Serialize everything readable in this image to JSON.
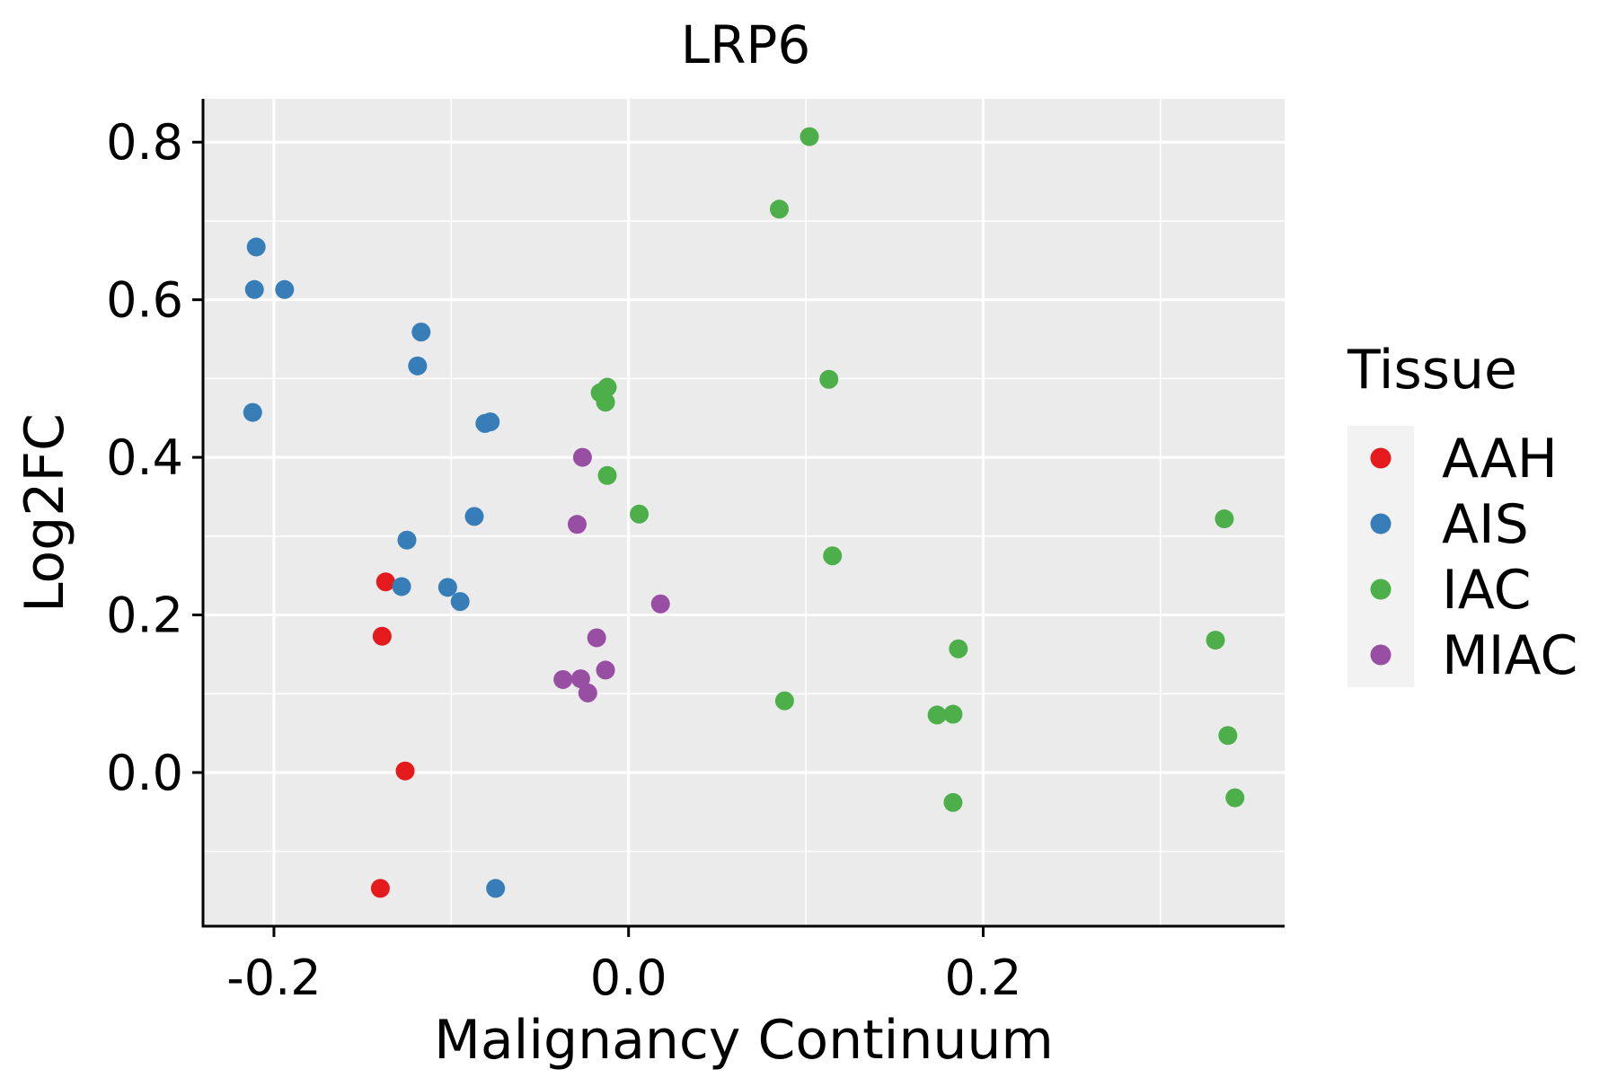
{
  "chart_data": {
    "type": "scatter",
    "title": "LRP6",
    "xlabel": "Malignancy Continuum",
    "ylabel": "Log2FC",
    "xlim": [
      -0.24,
      0.37
    ],
    "ylim": [
      -0.195,
      0.855
    ],
    "x_ticks": [
      -0.2,
      0.0,
      0.2
    ],
    "x_tick_labels": [
      "-0.2",
      "0.0",
      "0.2"
    ],
    "y_ticks": [
      0.0,
      0.2,
      0.4,
      0.6,
      0.8
    ],
    "y_tick_labels": [
      "0.0",
      "0.2",
      "0.4",
      "0.6",
      "0.8"
    ],
    "grid": true,
    "legend": {
      "title": "Tissue",
      "placement": "right"
    },
    "series": [
      {
        "name": "AAH",
        "color": "#E41A1C",
        "points": [
          {
            "x": -0.137,
            "y": 0.242
          },
          {
            "x": -0.139,
            "y": 0.173
          },
          {
            "x": -0.126,
            "y": 0.002
          },
          {
            "x": -0.14,
            "y": -0.147
          }
        ]
      },
      {
        "name": "AIS",
        "color": "#377EB8",
        "points": [
          {
            "x": -0.21,
            "y": 0.667
          },
          {
            "x": -0.211,
            "y": 0.613
          },
          {
            "x": -0.194,
            "y": 0.613
          },
          {
            "x": -0.117,
            "y": 0.559
          },
          {
            "x": -0.119,
            "y": 0.516
          },
          {
            "x": -0.212,
            "y": 0.457
          },
          {
            "x": -0.081,
            "y": 0.443
          },
          {
            "x": -0.078,
            "y": 0.445
          },
          {
            "x": -0.087,
            "y": 0.325
          },
          {
            "x": -0.125,
            "y": 0.295
          },
          {
            "x": -0.128,
            "y": 0.236
          },
          {
            "x": -0.102,
            "y": 0.235
          },
          {
            "x": -0.095,
            "y": 0.217
          },
          {
            "x": -0.075,
            "y": -0.147
          }
        ]
      },
      {
        "name": "IAC",
        "color": "#4DAF4A",
        "points": [
          {
            "x": 0.102,
            "y": 0.807
          },
          {
            "x": 0.085,
            "y": 0.715
          },
          {
            "x": 0.113,
            "y": 0.499
          },
          {
            "x": -0.012,
            "y": 0.489
          },
          {
            "x": -0.016,
            "y": 0.482
          },
          {
            "x": -0.013,
            "y": 0.47
          },
          {
            "x": -0.012,
            "y": 0.377
          },
          {
            "x": 0.006,
            "y": 0.328
          },
          {
            "x": 0.115,
            "y": 0.275
          },
          {
            "x": 0.336,
            "y": 0.322
          },
          {
            "x": 0.331,
            "y": 0.168
          },
          {
            "x": 0.186,
            "y": 0.157
          },
          {
            "x": 0.088,
            "y": 0.091
          },
          {
            "x": 0.174,
            "y": 0.073
          },
          {
            "x": 0.183,
            "y": 0.074
          },
          {
            "x": 0.338,
            "y": 0.047
          },
          {
            "x": 0.183,
            "y": -0.038
          },
          {
            "x": 0.342,
            "y": -0.032
          }
        ]
      },
      {
        "name": "MIAC",
        "color": "#984EA3",
        "points": [
          {
            "x": -0.026,
            "y": 0.4
          },
          {
            "x": -0.029,
            "y": 0.315
          },
          {
            "x": 0.018,
            "y": 0.214
          },
          {
            "x": -0.018,
            "y": 0.171
          },
          {
            "x": -0.013,
            "y": 0.13
          },
          {
            "x": -0.037,
            "y": 0.118
          },
          {
            "x": -0.027,
            "y": 0.119
          },
          {
            "x": -0.023,
            "y": 0.101
          }
        ]
      }
    ]
  }
}
